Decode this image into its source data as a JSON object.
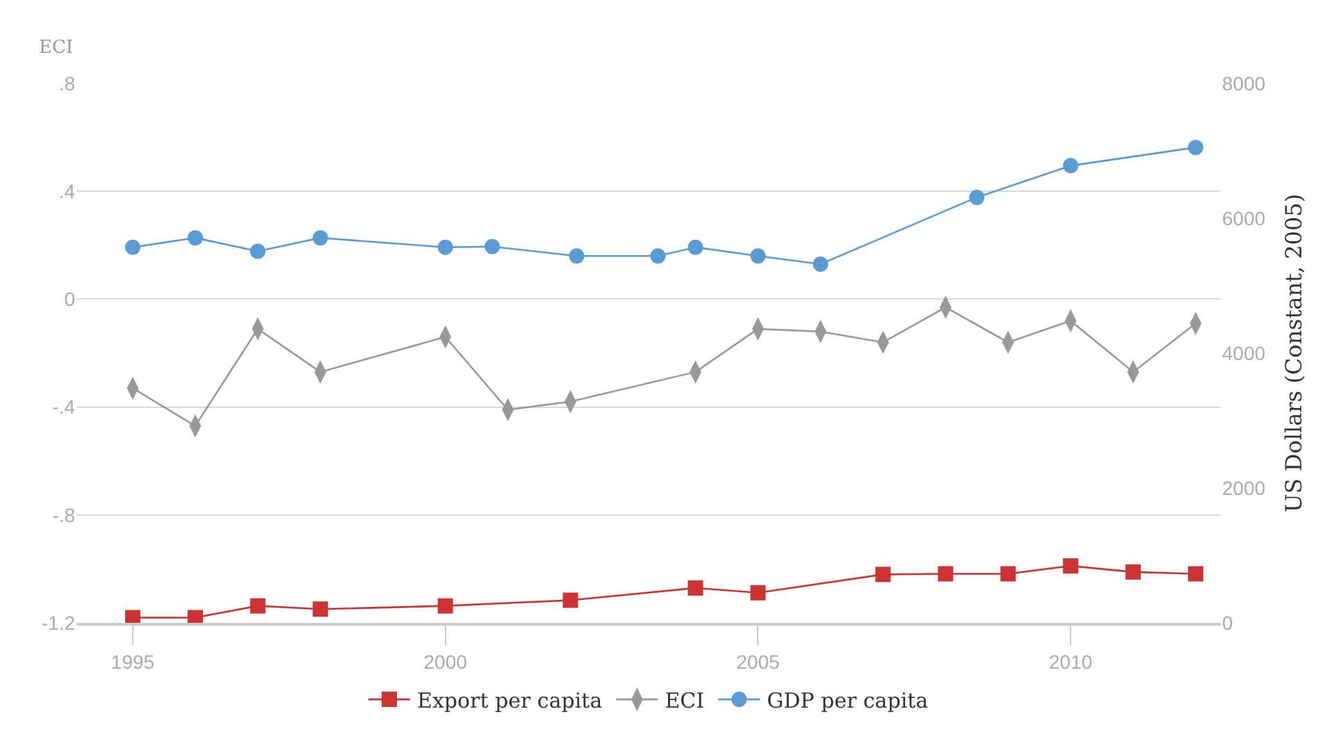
{
  "chart_data": {
    "type": "line",
    "ylabel": "ECI",
    "y2label": "US Dollars (Constant, 2005)",
    "xlim": [
      1994.1,
      2012.4
    ],
    "xticks": [
      1995,
      2000,
      2005,
      2010
    ],
    "ylim": [
      -1.2,
      0.8
    ],
    "yticks": [
      {
        "value": 0.8,
        "label": ".8"
      },
      {
        "value": 0.4,
        "label": ".4"
      },
      0,
      {
        "value": -0.4,
        "label": "-.4"
      },
      {
        "value": -0.8,
        "label": "-.8"
      },
      -1.2
    ],
    "y2lim": [
      0,
      8000
    ],
    "y2ticks": [
      0,
      2000,
      4000,
      6000,
      8000
    ],
    "grid": "y",
    "legend": "bottom",
    "line_style": "solid",
    "series": [
      {
        "name": "Export per capita",
        "color": "#cc3333",
        "axis": "y2",
        "marker": "square",
        "x": [
          1995,
          1996,
          1997,
          1998,
          2000,
          2002,
          2004,
          2005,
          2007,
          2008,
          2009,
          2010,
          2011,
          2012
        ],
        "values": [
          77,
          77,
          251,
          203,
          251,
          335,
          517,
          446,
          718,
          727,
          727,
          844,
          754,
          727
        ]
      },
      {
        "name": "ECI",
        "color": "#999999",
        "marker": "diamond",
        "x": [
          1995,
          1996,
          1997,
          1998,
          2000,
          2001,
          2002,
          2004,
          2005,
          2006,
          2007,
          2008,
          2009,
          2010,
          2011,
          2012
        ],
        "values": [
          -0.33,
          -0.47,
          -0.11,
          -0.27,
          -0.14,
          -0.41,
          -0.38,
          -0.27,
          -0.11,
          -0.12,
          -0.16,
          -0.03,
          -0.16,
          -0.08,
          -0.27,
          -0.09
        ]
      },
      {
        "name": "GDP per capita",
        "color": "#5b9bd5",
        "axis": "y2",
        "marker": "circle",
        "x": [
          1995,
          1996,
          1997,
          1998,
          2000,
          2000.75,
          2002.1,
          2003.4,
          2004,
          2005,
          2006,
          2008.5,
          2010,
          2012
        ],
        "values": [
          5570,
          5710,
          5510,
          5710,
          5570,
          5580,
          5440,
          5440,
          5570,
          5440,
          5320,
          6310,
          6780,
          7050
        ]
      }
    ]
  }
}
